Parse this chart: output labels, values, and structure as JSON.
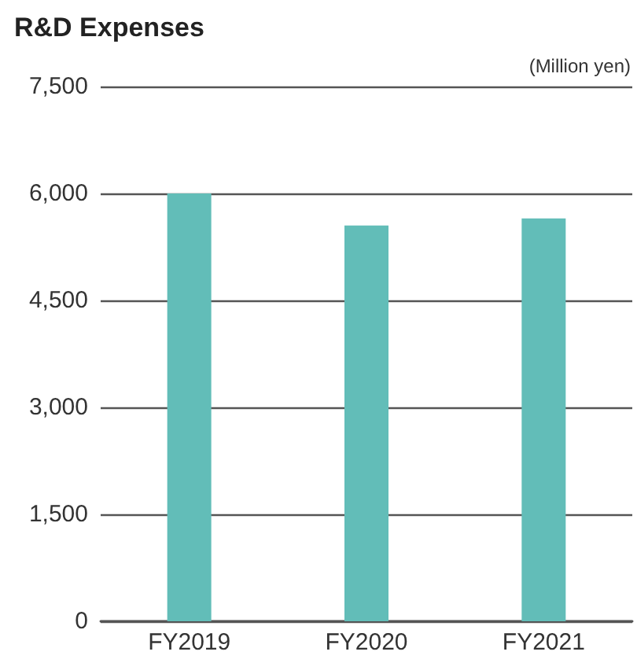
{
  "chart_data": {
    "type": "bar",
    "title": "R&D Expenses",
    "annotations": [
      "(Million yen)"
    ],
    "categories": [
      "FY2019",
      "FY2020",
      "FY2021"
    ],
    "values": [
      6000,
      5550,
      5650
    ],
    "color": "#62bdb8",
    "ylim": [
      0,
      7500
    ],
    "yticks": [
      0,
      {
        "value": 1500,
        "label": "1,500"
      },
      {
        "value": 3000,
        "label": "3,000"
      },
      {
        "value": 4500,
        "label": "4,500"
      },
      {
        "value": 6000,
        "label": "6,000"
      },
      {
        "value": 7500,
        "label": "7,500"
      }
    ],
    "grid": "y"
  }
}
